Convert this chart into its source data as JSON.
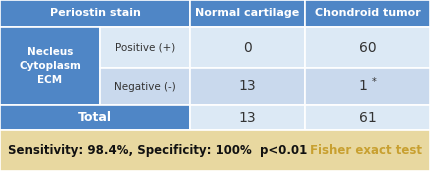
{
  "header_bg": "#4f86c6",
  "header_text_color": "#ffffff",
  "left_col_bg": "#4f86c6",
  "left_col_text": "#ffffff",
  "row1_bg": "#dce9f5",
  "row2_bg": "#c9d9ed",
  "total_bg": "#4f86c6",
  "total_text_color": "#ffffff",
  "footer_bg": "#e8d8a0",
  "footer_text_dark": "#111111",
  "footer_text_gold": "#c8a030",
  "row1_nc": "0",
  "row1_ct": "60",
  "row2_nc": "13",
  "row2_ct_main": "1",
  "row2_ct_star": "*",
  "total_nc": "13",
  "total_ct": "61",
  "footer_main": "Sensitivity: 98.4%, Specificity: 100%  p<0.01",
  "footer_sub": "Fisher exact test",
  "header_label": "Periostin stain",
  "col2_label": "Normal cartilage",
  "col3_label": "Chondroid tumor",
  "left_label_line1": "Necleus",
  "left_label_line2": "Cytoplasm",
  "left_label_line3": "ECM",
  "pos_label": "Positive (+)",
  "neg_label": "Negative (-)",
  "total_label": "Total",
  "edge_color": "#ffffff",
  "edge_lw": 1.2
}
